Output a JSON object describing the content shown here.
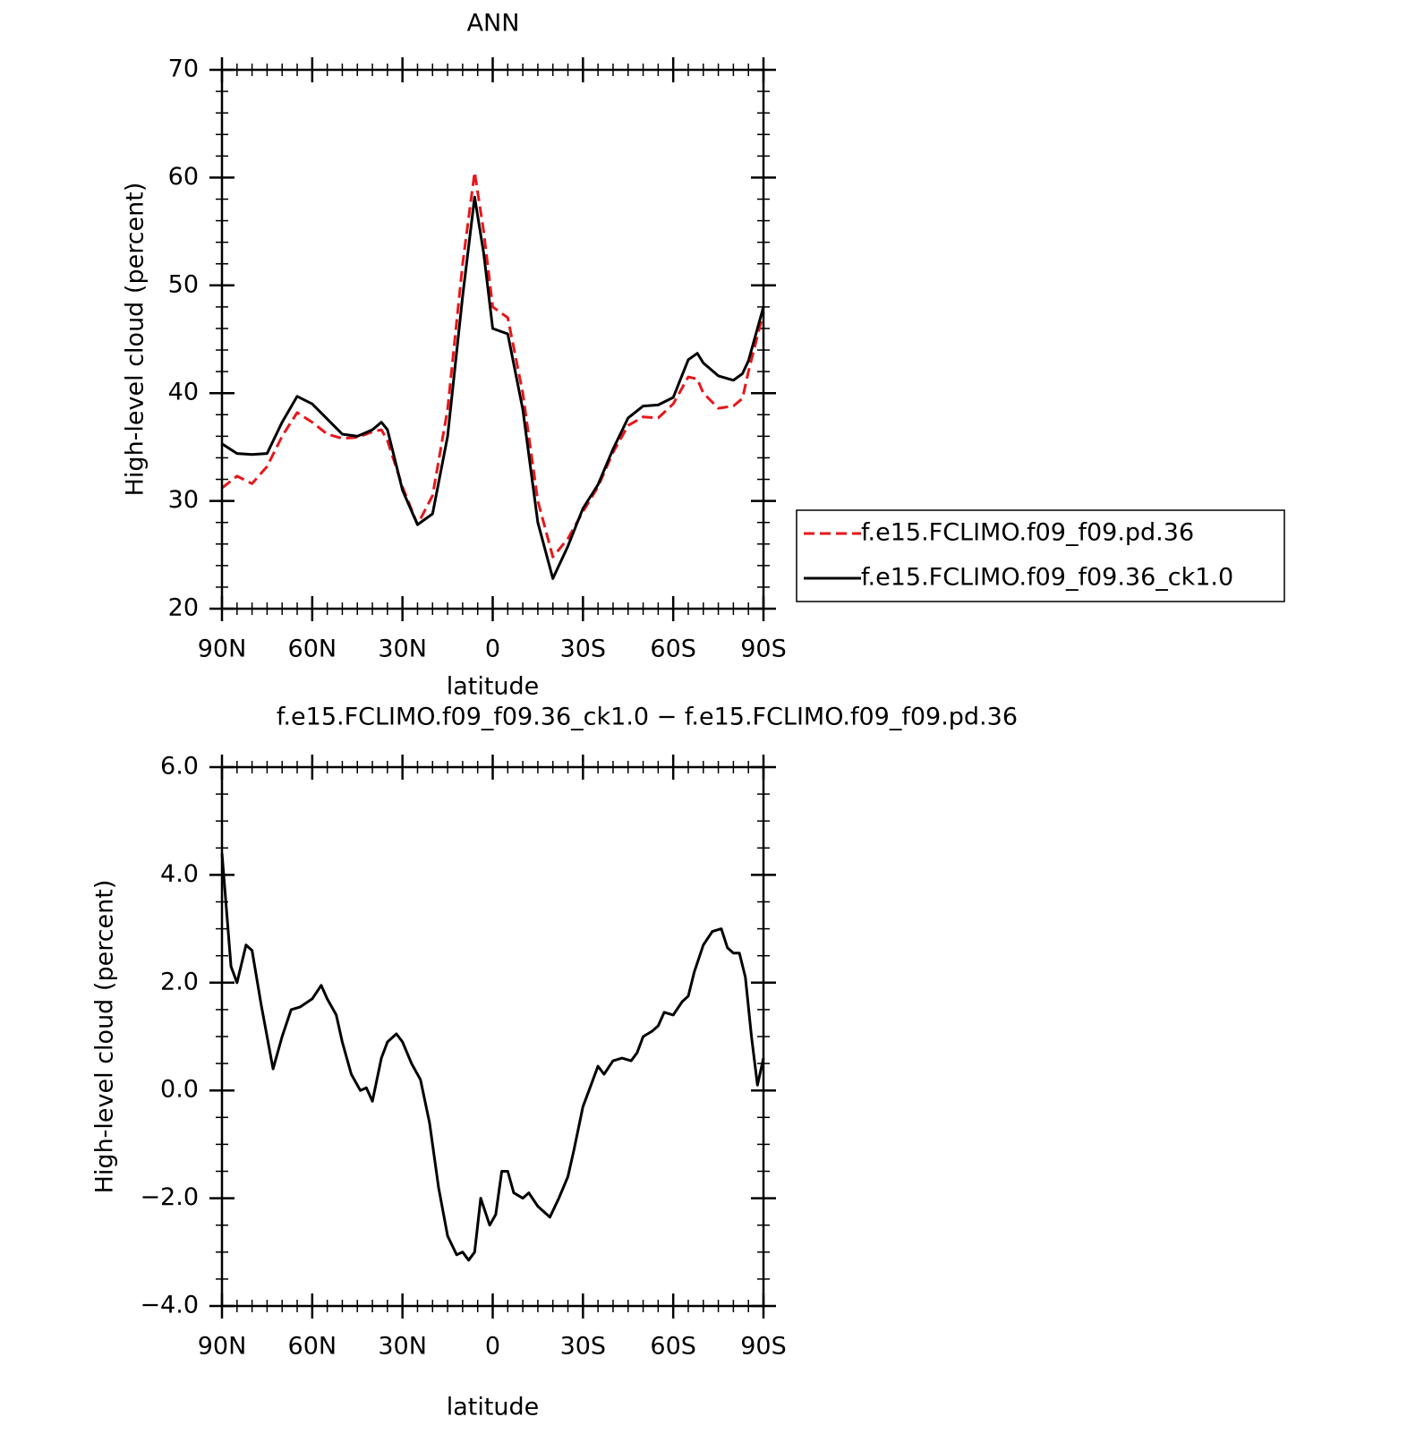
{
  "chart_data": [
    {
      "type": "line",
      "title": "ANN",
      "xlabel": "latitude",
      "ylabel": "High-level cloud (percent)",
      "x": [
        90,
        85,
        80,
        75,
        70,
        65,
        60,
        55,
        50,
        45,
        40,
        37,
        35,
        30,
        25,
        20,
        15,
        10,
        6,
        3,
        0,
        -5,
        -10,
        -15,
        -20,
        -25,
        -30,
        -35,
        -40,
        -45,
        -50,
        -55,
        -60,
        -65,
        -68,
        -70,
        -75,
        -80,
        -83,
        -85,
        -90
      ],
      "series": [
        {
          "name": "f.e15.FCLIMO.f09_f09.pd.36",
          "color": "#e8161a",
          "linestyle": "dashed",
          "values": [
            31.2,
            32.3,
            31.6,
            33.2,
            36.0,
            38.2,
            37.3,
            36.2,
            35.8,
            35.9,
            36.4,
            36.6,
            35.6,
            31.3,
            27.8,
            30.5,
            38.5,
            52,
            60.5,
            55,
            48,
            47,
            40,
            30,
            24.8,
            26.5,
            29.0,
            31.3,
            34.5,
            37.0,
            37.8,
            37.7,
            39.0,
            41.5,
            41.3,
            40.0,
            38.6,
            38.8,
            39.5,
            42,
            47.5
          ]
        },
        {
          "name": "f.e15.FCLIMO.f09_f09.36_ck1.0",
          "color": "#000000",
          "linestyle": "solid",
          "values": [
            35.3,
            34.4,
            34.3,
            34.4,
            37.3,
            39.7,
            39.0,
            37.6,
            36.2,
            36.0,
            36.6,
            37.3,
            36.6,
            31.0,
            27.8,
            28.8,
            36,
            49,
            58.2,
            53,
            46,
            45.5,
            38.5,
            28,
            22.8,
            25.8,
            29.3,
            31.5,
            34.8,
            37.7,
            38.8,
            38.9,
            39.6,
            43.1,
            43.7,
            42.8,
            41.6,
            41.2,
            41.8,
            43,
            48.0
          ]
        }
      ],
      "xlim": [
        90,
        -90
      ],
      "xticks": [
        {
          "value": 90,
          "label": "90N"
        },
        {
          "value": 60,
          "label": "60N"
        },
        {
          "value": 30,
          "label": "30N"
        },
        0,
        {
          "value": -30,
          "label": "30S"
        },
        {
          "value": -60,
          "label": "60S"
        },
        {
          "value": -90,
          "label": "90S"
        }
      ],
      "xminorticks": [
        85,
        80,
        75,
        70,
        65,
        55,
        50,
        45,
        40,
        35,
        25,
        20,
        15,
        10,
        5,
        -5,
        -10,
        -15,
        -20,
        -25,
        -35,
        -40,
        -45,
        -50,
        -55,
        -65,
        -70,
        -75,
        -80,
        -85
      ],
      "ylim": [
        20,
        70
      ],
      "yticks": [
        20,
        30,
        40,
        50,
        60,
        70
      ],
      "yminorticks": [
        22,
        24,
        26,
        28,
        32,
        34,
        36,
        38,
        42,
        44,
        46,
        48,
        52,
        54,
        56,
        58,
        62,
        64,
        66,
        68
      ],
      "legend": "right"
    },
    {
      "type": "line",
      "title": "f.e15.FCLIMO.f09_f09.36_ck1.0 − f.e15.FCLIMO.f09_f09.pd.36",
      "xlabel": "latitude",
      "ylabel": "High-level cloud (percent)",
      "x": [
        90,
        87,
        85,
        82,
        80,
        77,
        73,
        70,
        67,
        64,
        60,
        57,
        55,
        52,
        50,
        47,
        44,
        42,
        40,
        37,
        35,
        32,
        30,
        27,
        24,
        21,
        18,
        15,
        12,
        10,
        8,
        6,
        4,
        1,
        -1,
        -3,
        -5,
        -7,
        -10,
        -12,
        -15,
        -19,
        -22,
        -25,
        -27,
        -30,
        -32,
        -35,
        -37,
        -40,
        -43,
        -46,
        -48,
        -50,
        -53,
        -55,
        -57,
        -60,
        -63,
        -65,
        -67,
        -70,
        -73,
        -76,
        -78,
        -80,
        -82,
        -84,
        -86,
        -88,
        -90
      ],
      "series": [
        {
          "color": "#000000",
          "linestyle": "solid",
          "values": [
            4.4,
            2.3,
            2.0,
            2.7,
            2.6,
            1.6,
            0.4,
            1.0,
            1.5,
            1.55,
            1.7,
            1.95,
            1.7,
            1.4,
            0.9,
            0.3,
            0.0,
            0.05,
            -0.2,
            0.6,
            0.9,
            1.05,
            0.9,
            0.5,
            0.2,
            -0.6,
            -1.8,
            -2.7,
            -3.05,
            -3.0,
            -3.15,
            -3.0,
            -2.0,
            -2.5,
            -2.3,
            -1.5,
            -1.5,
            -1.9,
            -2.0,
            -1.9,
            -2.15,
            -2.35,
            -2.0,
            -1.6,
            -1.1,
            -0.3,
            0.0,
            0.45,
            0.3,
            0.55,
            0.6,
            0.55,
            0.7,
            1.0,
            1.1,
            1.2,
            1.45,
            1.4,
            1.65,
            1.75,
            2.2,
            2.7,
            2.95,
            3.0,
            2.65,
            2.55,
            2.55,
            2.1,
            1.0,
            0.1,
            0.6
          ]
        }
      ],
      "xlim": [
        90,
        -90
      ],
      "xticks": [
        {
          "value": 90,
          "label": "90N"
        },
        {
          "value": 60,
          "label": "60N"
        },
        {
          "value": 30,
          "label": "30N"
        },
        0,
        {
          "value": -30,
          "label": "30S"
        },
        {
          "value": -60,
          "label": "60S"
        },
        {
          "value": -90,
          "label": "90S"
        }
      ],
      "xminorticks": [
        85,
        80,
        75,
        70,
        65,
        55,
        50,
        45,
        40,
        35,
        25,
        20,
        15,
        10,
        5,
        -5,
        -10,
        -15,
        -20,
        -25,
        -35,
        -40,
        -45,
        -50,
        -55,
        -65,
        -70,
        -75,
        -80,
        -85
      ],
      "ylim": [
        -4,
        6
      ],
      "yticks": [
        {
          "value": -4,
          "label": "−4.0"
        },
        {
          "value": -2,
          "label": "−2.0"
        },
        {
          "value": 0,
          "label": "0.0"
        },
        {
          "value": 2,
          "label": "2.0"
        },
        {
          "value": 4,
          "label": "4.0"
        },
        {
          "value": 6,
          "label": "6.0"
        }
      ],
      "yminorticks": [
        -3.5,
        -3,
        -2.5,
        -1.5,
        -1,
        -0.5,
        0.5,
        1,
        1.5,
        2.5,
        3,
        3.5,
        4.5,
        5,
        5.5
      ]
    }
  ]
}
